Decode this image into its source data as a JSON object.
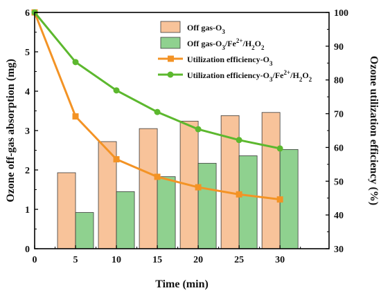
{
  "chart_data": {
    "type": "bar+line",
    "xlabel": "Time (min)",
    "ylabel_left": "Ozone off-gas absorption (mg)",
    "ylabel_right": "Ozone utilization efficiency (%)",
    "x_ticks": [
      0,
      5,
      10,
      15,
      20,
      25,
      30
    ],
    "xlim": [
      0,
      36
    ],
    "ylim_left": [
      0,
      6
    ],
    "ylim_right": [
      30,
      100
    ],
    "y_ticks_left": [
      0,
      1,
      2,
      3,
      4,
      5,
      6
    ],
    "y_ticks_right": [
      30,
      40,
      50,
      60,
      70,
      80,
      90,
      100
    ],
    "categories": [
      5,
      10,
      15,
      20,
      25,
      30
    ],
    "bar_series": [
      {
        "name": "Off gas-O3",
        "axis": "left",
        "color": "#f8c39a",
        "values": [
          1.93,
          2.72,
          3.05,
          3.24,
          3.38,
          3.46
        ]
      },
      {
        "name": "Off gas-O3/Fe2+/H2O2",
        "axis": "left",
        "color": "#8fd18f",
        "values": [
          0.92,
          1.45,
          1.83,
          2.17,
          2.36,
          2.52
        ]
      }
    ],
    "line_series": [
      {
        "name": "Utilization efficiency-O3",
        "axis": "right",
        "color": "#f39325",
        "marker": "square",
        "x": [
          0,
          5,
          10,
          15,
          20,
          25,
          30
        ],
        "values": [
          100,
          69.2,
          56.5,
          51.3,
          48.2,
          46.1,
          44.6
        ]
      },
      {
        "name": "Utilization efficiency-O3/Fe2+/H2O2",
        "axis": "right",
        "color": "#5cb82e",
        "marker": "circle",
        "x": [
          0,
          5,
          10,
          15,
          20,
          25,
          30
        ],
        "values": [
          100,
          85.3,
          76.9,
          70.5,
          65.4,
          62.2,
          59.7
        ]
      }
    ],
    "legend": "top-right",
    "grid": false
  }
}
